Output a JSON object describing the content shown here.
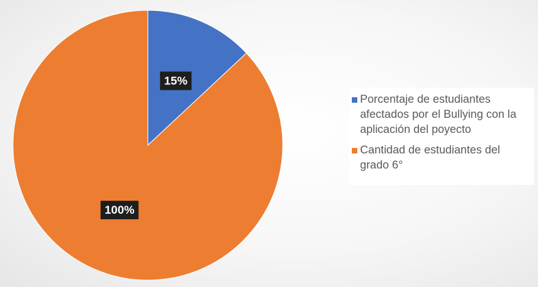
{
  "chart_data": {
    "type": "pie",
    "slices": [
      {
        "label": "Porcentaje de estudiantes afectados por el Bullying con la aplicación del poyecto",
        "value": 15,
        "display": "15%",
        "color": "#4472C4"
      },
      {
        "label": "Cantidad de estudiantes del grado 6°",
        "value": 100,
        "display": "100%",
        "color": "#ED7D31"
      }
    ],
    "start_angle_deg": 0,
    "direction": "clockwise",
    "legend_position": "right"
  }
}
